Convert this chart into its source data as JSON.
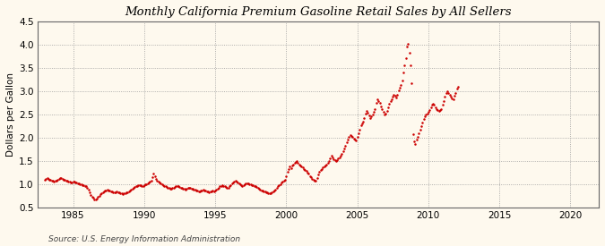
{
  "title": "Monthly California Premium Gasoline Retail Sales by All Sellers",
  "ylabel": "Dollars per Gallon",
  "source_text": "Source: U.S. Energy Information Administration",
  "background_color": "#fef9ee",
  "dot_color": "#cc0000",
  "xlim": [
    1982.5,
    2022
  ],
  "ylim": [
    0.5,
    4.5
  ],
  "xticks": [
    1985,
    1990,
    1995,
    2000,
    2005,
    2010,
    2015,
    2020
  ],
  "yticks": [
    0.5,
    1.0,
    1.5,
    2.0,
    2.5,
    3.0,
    3.5,
    4.0,
    4.5
  ],
  "data": [
    [
      1983.0,
      1.1
    ],
    [
      1983.08,
      1.12
    ],
    [
      1983.17,
      1.13
    ],
    [
      1983.25,
      1.12
    ],
    [
      1983.33,
      1.1
    ],
    [
      1983.42,
      1.09
    ],
    [
      1983.5,
      1.08
    ],
    [
      1983.58,
      1.07
    ],
    [
      1983.67,
      1.06
    ],
    [
      1983.75,
      1.07
    ],
    [
      1983.83,
      1.08
    ],
    [
      1983.92,
      1.09
    ],
    [
      1984.0,
      1.12
    ],
    [
      1984.08,
      1.14
    ],
    [
      1984.17,
      1.13
    ],
    [
      1984.25,
      1.12
    ],
    [
      1984.33,
      1.1
    ],
    [
      1984.42,
      1.09
    ],
    [
      1984.5,
      1.08
    ],
    [
      1984.58,
      1.07
    ],
    [
      1984.67,
      1.06
    ],
    [
      1984.75,
      1.05
    ],
    [
      1984.83,
      1.04
    ],
    [
      1984.92,
      1.03
    ],
    [
      1985.0,
      1.05
    ],
    [
      1985.08,
      1.06
    ],
    [
      1985.17,
      1.04
    ],
    [
      1985.25,
      1.03
    ],
    [
      1985.33,
      1.02
    ],
    [
      1985.42,
      1.01
    ],
    [
      1985.5,
      1.0
    ],
    [
      1985.58,
      0.99
    ],
    [
      1985.67,
      0.98
    ],
    [
      1985.75,
      0.97
    ],
    [
      1985.83,
      0.96
    ],
    [
      1985.92,
      0.95
    ],
    [
      1986.0,
      0.93
    ],
    [
      1986.08,
      0.88
    ],
    [
      1986.17,
      0.82
    ],
    [
      1986.25,
      0.76
    ],
    [
      1986.33,
      0.72
    ],
    [
      1986.42,
      0.7
    ],
    [
      1986.5,
      0.68
    ],
    [
      1986.58,
      0.67
    ],
    [
      1986.67,
      0.69
    ],
    [
      1986.75,
      0.72
    ],
    [
      1986.83,
      0.75
    ],
    [
      1986.92,
      0.78
    ],
    [
      1987.0,
      0.8
    ],
    [
      1987.08,
      0.82
    ],
    [
      1987.17,
      0.84
    ],
    [
      1987.25,
      0.86
    ],
    [
      1987.33,
      0.87
    ],
    [
      1987.42,
      0.88
    ],
    [
      1987.5,
      0.87
    ],
    [
      1987.58,
      0.86
    ],
    [
      1987.67,
      0.85
    ],
    [
      1987.75,
      0.84
    ],
    [
      1987.83,
      0.83
    ],
    [
      1987.92,
      0.82
    ],
    [
      1988.0,
      0.83
    ],
    [
      1988.08,
      0.84
    ],
    [
      1988.17,
      0.83
    ],
    [
      1988.25,
      0.82
    ],
    [
      1988.33,
      0.81
    ],
    [
      1988.42,
      0.8
    ],
    [
      1988.5,
      0.79
    ],
    [
      1988.58,
      0.8
    ],
    [
      1988.67,
      0.81
    ],
    [
      1988.75,
      0.82
    ],
    [
      1988.83,
      0.83
    ],
    [
      1988.92,
      0.84
    ],
    [
      1989.0,
      0.86
    ],
    [
      1989.08,
      0.88
    ],
    [
      1989.17,
      0.9
    ],
    [
      1989.25,
      0.92
    ],
    [
      1989.33,
      0.94
    ],
    [
      1989.42,
      0.95
    ],
    [
      1989.5,
      0.96
    ],
    [
      1989.58,
      0.97
    ],
    [
      1989.67,
      0.98
    ],
    [
      1989.75,
      0.97
    ],
    [
      1989.83,
      0.96
    ],
    [
      1989.92,
      0.95
    ],
    [
      1990.0,
      0.97
    ],
    [
      1990.08,
      0.99
    ],
    [
      1990.17,
      1.0
    ],
    [
      1990.25,
      1.02
    ],
    [
      1990.33,
      1.04
    ],
    [
      1990.42,
      1.06
    ],
    [
      1990.5,
      1.08
    ],
    [
      1990.58,
      1.15
    ],
    [
      1990.67,
      1.22
    ],
    [
      1990.75,
      1.18
    ],
    [
      1990.83,
      1.12
    ],
    [
      1990.92,
      1.08
    ],
    [
      1991.0,
      1.06
    ],
    [
      1991.08,
      1.04
    ],
    [
      1991.17,
      1.02
    ],
    [
      1991.25,
      1.0
    ],
    [
      1991.33,
      0.98
    ],
    [
      1991.42,
      0.96
    ],
    [
      1991.5,
      0.95
    ],
    [
      1991.58,
      0.94
    ],
    [
      1991.67,
      0.93
    ],
    [
      1991.75,
      0.92
    ],
    [
      1991.83,
      0.91
    ],
    [
      1991.92,
      0.9
    ],
    [
      1992.0,
      0.92
    ],
    [
      1992.08,
      0.93
    ],
    [
      1992.17,
      0.94
    ],
    [
      1992.25,
      0.95
    ],
    [
      1992.33,
      0.96
    ],
    [
      1992.42,
      0.95
    ],
    [
      1992.5,
      0.94
    ],
    [
      1992.58,
      0.93
    ],
    [
      1992.67,
      0.92
    ],
    [
      1992.75,
      0.91
    ],
    [
      1992.83,
      0.9
    ],
    [
      1992.92,
      0.89
    ],
    [
      1993.0,
      0.91
    ],
    [
      1993.08,
      0.92
    ],
    [
      1993.17,
      0.93
    ],
    [
      1993.25,
      0.92
    ],
    [
      1993.33,
      0.91
    ],
    [
      1993.42,
      0.9
    ],
    [
      1993.5,
      0.89
    ],
    [
      1993.58,
      0.88
    ],
    [
      1993.67,
      0.87
    ],
    [
      1993.75,
      0.86
    ],
    [
      1993.83,
      0.85
    ],
    [
      1993.92,
      0.84
    ],
    [
      1994.0,
      0.86
    ],
    [
      1994.08,
      0.87
    ],
    [
      1994.17,
      0.88
    ],
    [
      1994.25,
      0.87
    ],
    [
      1994.33,
      0.86
    ],
    [
      1994.42,
      0.85
    ],
    [
      1994.5,
      0.84
    ],
    [
      1994.58,
      0.83
    ],
    [
      1994.67,
      0.84
    ],
    [
      1994.75,
      0.85
    ],
    [
      1994.83,
      0.86
    ],
    [
      1994.92,
      0.85
    ],
    [
      1995.0,
      0.87
    ],
    [
      1995.08,
      0.89
    ],
    [
      1995.17,
      0.91
    ],
    [
      1995.25,
      0.93
    ],
    [
      1995.33,
      0.95
    ],
    [
      1995.42,
      0.96
    ],
    [
      1995.5,
      0.97
    ],
    [
      1995.58,
      0.96
    ],
    [
      1995.67,
      0.95
    ],
    [
      1995.75,
      0.94
    ],
    [
      1995.83,
      0.93
    ],
    [
      1995.92,
      0.92
    ],
    [
      1996.0,
      0.95
    ],
    [
      1996.08,
      0.98
    ],
    [
      1996.17,
      1.01
    ],
    [
      1996.25,
      1.04
    ],
    [
      1996.33,
      1.06
    ],
    [
      1996.42,
      1.07
    ],
    [
      1996.5,
      1.05
    ],
    [
      1996.58,
      1.03
    ],
    [
      1996.67,
      1.01
    ],
    [
      1996.75,
      0.99
    ],
    [
      1996.83,
      0.97
    ],
    [
      1996.92,
      0.95
    ],
    [
      1997.0,
      0.97
    ],
    [
      1997.08,
      0.99
    ],
    [
      1997.17,
      1.01
    ],
    [
      1997.25,
      1.02
    ],
    [
      1997.33,
      1.01
    ],
    [
      1997.42,
      1.0
    ],
    [
      1997.5,
      0.99
    ],
    [
      1997.58,
      0.98
    ],
    [
      1997.67,
      0.97
    ],
    [
      1997.75,
      0.96
    ],
    [
      1997.83,
      0.95
    ],
    [
      1997.92,
      0.94
    ],
    [
      1998.0,
      0.93
    ],
    [
      1998.08,
      0.91
    ],
    [
      1998.17,
      0.89
    ],
    [
      1998.25,
      0.87
    ],
    [
      1998.33,
      0.86
    ],
    [
      1998.42,
      0.85
    ],
    [
      1998.5,
      0.84
    ],
    [
      1998.58,
      0.83
    ],
    [
      1998.67,
      0.82
    ],
    [
      1998.75,
      0.81
    ],
    [
      1998.83,
      0.8
    ],
    [
      1998.92,
      0.8
    ],
    [
      1999.0,
      0.82
    ],
    [
      1999.08,
      0.84
    ],
    [
      1999.17,
      0.86
    ],
    [
      1999.25,
      0.89
    ],
    [
      1999.33,
      0.92
    ],
    [
      1999.42,
      0.95
    ],
    [
      1999.5,
      0.97
    ],
    [
      1999.58,
      1.0
    ],
    [
      1999.67,
      1.03
    ],
    [
      1999.75,
      1.06
    ],
    [
      1999.83,
      1.08
    ],
    [
      1999.92,
      1.1
    ],
    [
      2000.0,
      1.18
    ],
    [
      2000.08,
      1.26
    ],
    [
      2000.17,
      1.33
    ],
    [
      2000.25,
      1.38
    ],
    [
      2000.33,
      1.35
    ],
    [
      2000.42,
      1.4
    ],
    [
      2000.5,
      1.43
    ],
    [
      2000.58,
      1.46
    ],
    [
      2000.67,
      1.48
    ],
    [
      2000.75,
      1.5
    ],
    [
      2000.83,
      1.46
    ],
    [
      2000.92,
      1.42
    ],
    [
      2001.0,
      1.4
    ],
    [
      2001.08,
      1.38
    ],
    [
      2001.17,
      1.36
    ],
    [
      2001.25,
      1.33
    ],
    [
      2001.33,
      1.3
    ],
    [
      2001.42,
      1.28
    ],
    [
      2001.5,
      1.25
    ],
    [
      2001.58,
      1.22
    ],
    [
      2001.67,
      1.18
    ],
    [
      2001.75,
      1.15
    ],
    [
      2001.83,
      1.12
    ],
    [
      2001.92,
      1.1
    ],
    [
      2002.0,
      1.08
    ],
    [
      2002.08,
      1.07
    ],
    [
      2002.17,
      1.13
    ],
    [
      2002.25,
      1.2
    ],
    [
      2002.33,
      1.26
    ],
    [
      2002.42,
      1.3
    ],
    [
      2002.5,
      1.33
    ],
    [
      2002.58,
      1.36
    ],
    [
      2002.67,
      1.38
    ],
    [
      2002.75,
      1.4
    ],
    [
      2002.83,
      1.42
    ],
    [
      2002.92,
      1.45
    ],
    [
      2003.0,
      1.5
    ],
    [
      2003.08,
      1.56
    ],
    [
      2003.17,
      1.62
    ],
    [
      2003.25,
      1.58
    ],
    [
      2003.33,
      1.54
    ],
    [
      2003.42,
      1.52
    ],
    [
      2003.5,
      1.5
    ],
    [
      2003.58,
      1.52
    ],
    [
      2003.67,
      1.55
    ],
    [
      2003.75,
      1.58
    ],
    [
      2003.83,
      1.62
    ],
    [
      2003.92,
      1.66
    ],
    [
      2004.0,
      1.7
    ],
    [
      2004.08,
      1.76
    ],
    [
      2004.17,
      1.83
    ],
    [
      2004.25,
      1.9
    ],
    [
      2004.33,
      1.96
    ],
    [
      2004.42,
      2.02
    ],
    [
      2004.5,
      2.06
    ],
    [
      2004.58,
      2.04
    ],
    [
      2004.67,
      2.01
    ],
    [
      2004.75,
      1.98
    ],
    [
      2004.83,
      1.96
    ],
    [
      2004.92,
      1.94
    ],
    [
      2005.0,
      2.02
    ],
    [
      2005.08,
      2.1
    ],
    [
      2005.17,
      2.18
    ],
    [
      2005.25,
      2.26
    ],
    [
      2005.33,
      2.3
    ],
    [
      2005.42,
      2.35
    ],
    [
      2005.5,
      2.42
    ],
    [
      2005.58,
      2.52
    ],
    [
      2005.67,
      2.58
    ],
    [
      2005.75,
      2.54
    ],
    [
      2005.83,
      2.48
    ],
    [
      2005.92,
      2.42
    ],
    [
      2006.0,
      2.45
    ],
    [
      2006.08,
      2.5
    ],
    [
      2006.17,
      2.56
    ],
    [
      2006.25,
      2.62
    ],
    [
      2006.33,
      2.75
    ],
    [
      2006.42,
      2.82
    ],
    [
      2006.5,
      2.78
    ],
    [
      2006.58,
      2.74
    ],
    [
      2006.67,
      2.68
    ],
    [
      2006.75,
      2.62
    ],
    [
      2006.83,
      2.55
    ],
    [
      2006.92,
      2.5
    ],
    [
      2007.0,
      2.52
    ],
    [
      2007.08,
      2.58
    ],
    [
      2007.17,
      2.65
    ],
    [
      2007.25,
      2.72
    ],
    [
      2007.33,
      2.78
    ],
    [
      2007.42,
      2.82
    ],
    [
      2007.5,
      2.88
    ],
    [
      2007.58,
      2.92
    ],
    [
      2007.67,
      2.9
    ],
    [
      2007.75,
      2.86
    ],
    [
      2007.83,
      2.92
    ],
    [
      2007.92,
      3.02
    ],
    [
      2008.0,
      3.08
    ],
    [
      2008.08,
      3.14
    ],
    [
      2008.17,
      3.22
    ],
    [
      2008.25,
      3.4
    ],
    [
      2008.33,
      3.55
    ],
    [
      2008.42,
      3.7
    ],
    [
      2008.5,
      3.95
    ],
    [
      2008.58,
      4.02
    ],
    [
      2008.67,
      3.82
    ],
    [
      2008.75,
      3.55
    ],
    [
      2008.83,
      3.18
    ],
    [
      2008.92,
      2.08
    ],
    [
      2009.0,
      1.92
    ],
    [
      2009.08,
      1.86
    ],
    [
      2009.17,
      1.95
    ],
    [
      2009.25,
      2.02
    ],
    [
      2009.33,
      2.1
    ],
    [
      2009.42,
      2.18
    ],
    [
      2009.5,
      2.25
    ],
    [
      2009.58,
      2.32
    ],
    [
      2009.67,
      2.4
    ],
    [
      2009.75,
      2.45
    ],
    [
      2009.83,
      2.5
    ],
    [
      2009.92,
      2.52
    ],
    [
      2010.0,
      2.55
    ],
    [
      2010.08,
      2.6
    ],
    [
      2010.17,
      2.65
    ],
    [
      2010.25,
      2.7
    ],
    [
      2010.33,
      2.72
    ],
    [
      2010.42,
      2.7
    ],
    [
      2010.5,
      2.65
    ],
    [
      2010.58,
      2.62
    ],
    [
      2010.67,
      2.6
    ],
    [
      2010.75,
      2.58
    ],
    [
      2010.83,
      2.6
    ],
    [
      2010.92,
      2.62
    ],
    [
      2011.0,
      2.7
    ],
    [
      2011.08,
      2.78
    ],
    [
      2011.17,
      2.88
    ],
    [
      2011.25,
      2.95
    ],
    [
      2011.33,
      3.0
    ],
    [
      2011.42,
      2.96
    ],
    [
      2011.5,
      2.92
    ],
    [
      2011.58,
      2.88
    ],
    [
      2011.67,
      2.85
    ],
    [
      2011.75,
      2.82
    ],
    [
      2011.83,
      2.9
    ],
    [
      2011.92,
      2.96
    ],
    [
      2012.0,
      3.05
    ],
    [
      2012.08,
      3.1
    ]
  ]
}
